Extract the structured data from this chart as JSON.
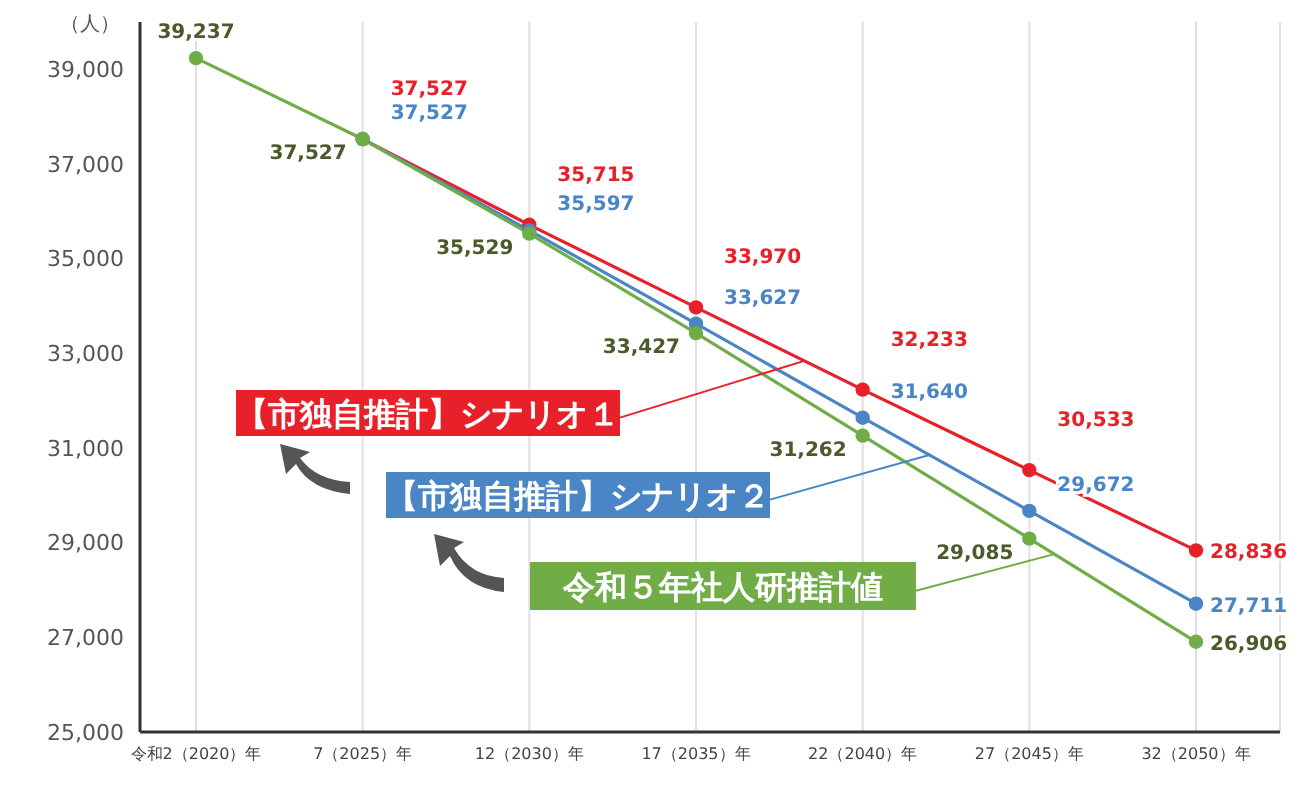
{
  "chart_data": {
    "type": "line",
    "ylabel": "（人）",
    "categories": [
      "令和2（2020）年",
      "7（2025）年",
      "12（2030）年",
      "17（2035）年",
      "22（2040）年",
      "27（2045）年",
      "32（2050）年"
    ],
    "series": [
      {
        "name": "【市独自推計】シナリオ１",
        "color": "#e8202a",
        "values": [
          null,
          37527,
          35715,
          33970,
          32233,
          30533,
          28836
        ],
        "value_labels": [
          null,
          "37,527",
          "35,715",
          "33,970",
          "32,233",
          "30,533",
          "28,836"
        ]
      },
      {
        "name": "【市独自推計】シナリオ２",
        "color": "#4a86c5",
        "values": [
          null,
          37527,
          35597,
          33627,
          31640,
          29672,
          27711
        ],
        "value_labels": [
          null,
          "37,527",
          "35,597",
          "33,627",
          "31,640",
          "29,672",
          "27,711"
        ]
      },
      {
        "name": "令和５年社人研推計値",
        "color": "#70ad47",
        "values": [
          39237,
          37527,
          35529,
          33427,
          31262,
          29085,
          26906
        ],
        "value_labels": [
          "39,237",
          "37,527",
          "35,529",
          "33,427",
          "31,262",
          "29,085",
          "26,906"
        ]
      }
    ],
    "ylim": [
      25000,
      40000
    ],
    "yticks": [
      {
        "value": 25000,
        "label": "25,000"
      },
      {
        "value": 27000,
        "label": "27,000"
      },
      {
        "value": 29000,
        "label": "29,000"
      },
      {
        "value": 31000,
        "label": "31,000"
      },
      {
        "value": 33000,
        "label": "33,000"
      },
      {
        "value": 35000,
        "label": "35,000"
      },
      {
        "value": 37000,
        "label": "37,000"
      },
      {
        "value": 39000,
        "label": "39,000"
      }
    ],
    "grid": "x",
    "marker": "circle",
    "line_style": "solid",
    "legend": "left"
  }
}
